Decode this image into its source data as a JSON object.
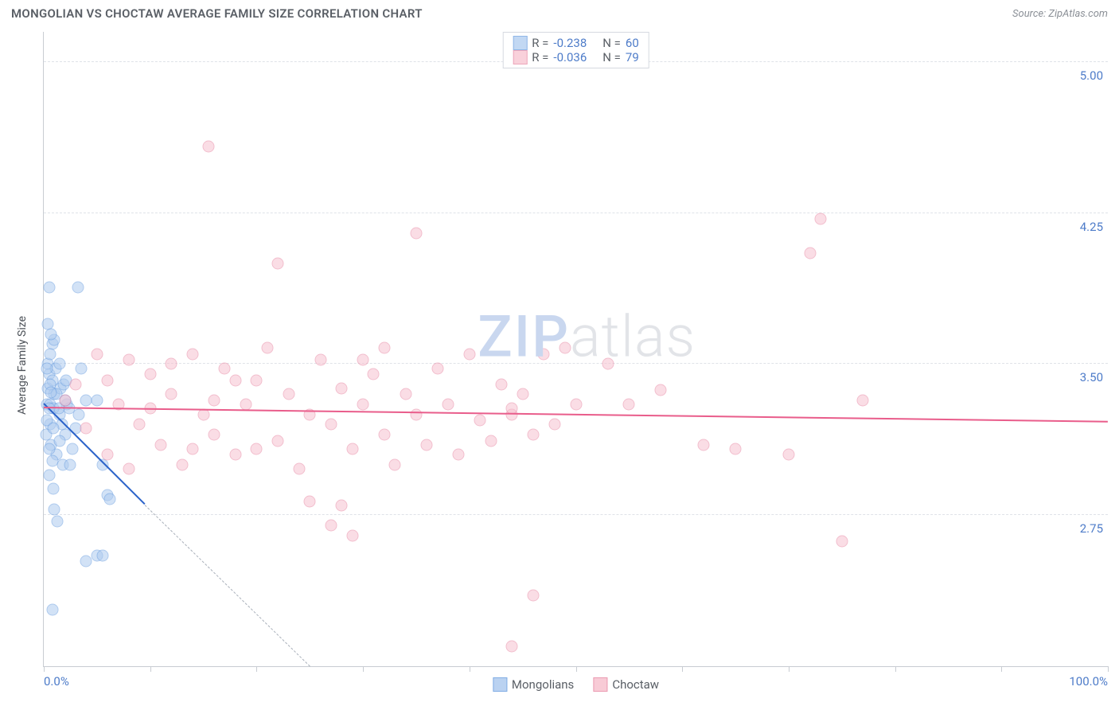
{
  "title": "MONGOLIAN VS CHOCTAW AVERAGE FAMILY SIZE CORRELATION CHART",
  "source": "Source: ZipAtlas.com",
  "ylabel": "Average Family Size",
  "watermark": {
    "a": "ZIP",
    "b": "atlas"
  },
  "chart": {
    "type": "scatter",
    "xlim": [
      0,
      100
    ],
    "ylim": [
      2.0,
      5.15
    ],
    "yticks": [
      2.75,
      3.5,
      4.25,
      5.0
    ],
    "ytick_labels": [
      "2.75",
      "3.50",
      "4.25",
      "5.00"
    ],
    "xticks_minor": [
      0,
      10,
      20,
      30,
      40,
      50,
      60,
      70,
      80,
      90,
      100
    ],
    "xlabel_min": "0.0%",
    "xlabel_max": "100.0%",
    "grid_color": "#dfe2e8",
    "axis_color": "#c8ccd2",
    "tick_label_color": "#4e7cc9",
    "background": "#ffffff",
    "series": [
      {
        "name": "Mongolians",
        "fill": "#aecbef",
        "stroke": "#6c9fe0",
        "fill_opacity": 0.55,
        "line_color": "#2a62c9",
        "r": -0.238,
        "n": 60,
        "reg": {
          "x1": 0,
          "y1": 3.3,
          "x2": 9.5,
          "y2": 2.8,
          "dash_to_x": 25,
          "dash_to_y": 2.0
        },
        "points": [
          [
            0.3,
            3.3
          ],
          [
            0.5,
            3.45
          ],
          [
            0.8,
            3.6
          ],
          [
            0.4,
            3.5
          ],
          [
            1.0,
            3.35
          ],
          [
            1.5,
            3.25
          ],
          [
            0.6,
            3.2
          ],
          [
            0.7,
            3.1
          ],
          [
            1.2,
            3.05
          ],
          [
            1.8,
            3.0
          ],
          [
            2.0,
            3.15
          ],
          [
            2.2,
            3.3
          ],
          [
            0.5,
            2.95
          ],
          [
            0.9,
            2.88
          ],
          [
            1.0,
            2.78
          ],
          [
            1.3,
            2.72
          ],
          [
            0.4,
            3.7
          ],
          [
            0.6,
            3.55
          ],
          [
            0.4,
            3.38
          ],
          [
            0.8,
            3.42
          ],
          [
            1.1,
            3.48
          ],
          [
            1.6,
            3.38
          ],
          [
            2.5,
            3.0
          ],
          [
            2.7,
            3.08
          ],
          [
            3.0,
            3.18
          ],
          [
            3.3,
            3.25
          ],
          [
            3.5,
            3.48
          ],
          [
            4.0,
            3.32
          ],
          [
            3.2,
            3.88
          ],
          [
            0.5,
            3.88
          ],
          [
            5.0,
            3.32
          ],
          [
            5.5,
            3.0
          ],
          [
            6.0,
            2.85
          ],
          [
            6.2,
            2.83
          ],
          [
            4.0,
            2.52
          ],
          [
            5.0,
            2.55
          ],
          [
            5.5,
            2.55
          ],
          [
            0.8,
            2.28
          ],
          [
            0.8,
            3.02
          ],
          [
            1.5,
            3.5
          ],
          [
            1.0,
            3.62
          ],
          [
            0.7,
            3.65
          ],
          [
            0.3,
            3.48
          ],
          [
            0.6,
            3.3
          ],
          [
            0.9,
            3.28
          ],
          [
            1.4,
            3.28
          ],
          [
            1.7,
            3.2
          ],
          [
            1.9,
            3.4
          ],
          [
            2.1,
            3.42
          ],
          [
            2.4,
            3.28
          ],
          [
            0.2,
            3.15
          ],
          [
            0.5,
            3.08
          ],
          [
            0.6,
            3.4
          ],
          [
            0.3,
            3.22
          ],
          [
            0.9,
            3.18
          ],
          [
            1.2,
            3.35
          ],
          [
            1.5,
            3.12
          ],
          [
            2.0,
            3.32
          ],
          [
            0.5,
            3.28
          ],
          [
            0.7,
            3.36
          ]
        ]
      },
      {
        "name": "Choctaw",
        "fill": "#f7c2d0",
        "stroke": "#e88aa5",
        "fill_opacity": 0.55,
        "line_color": "#e95d8b",
        "r": -0.036,
        "n": 79,
        "reg": {
          "x1": 0,
          "y1": 3.28,
          "x2": 100,
          "y2": 3.21
        },
        "points": [
          [
            3,
            3.4
          ],
          [
            5,
            3.55
          ],
          [
            6,
            3.05
          ],
          [
            7,
            3.3
          ],
          [
            8,
            3.52
          ],
          [
            9,
            3.2
          ],
          [
            10,
            3.45
          ],
          [
            11,
            3.1
          ],
          [
            12,
            3.35
          ],
          [
            13,
            3.0
          ],
          [
            14,
            3.55
          ],
          [
            15,
            3.25
          ],
          [
            15.5,
            4.58
          ],
          [
            16,
            3.15
          ],
          [
            17,
            3.48
          ],
          [
            18,
            3.05
          ],
          [
            19,
            3.3
          ],
          [
            20,
            3.42
          ],
          [
            21,
            3.58
          ],
          [
            22,
            3.12
          ],
          [
            22,
            4.0
          ],
          [
            23,
            3.35
          ],
          [
            24,
            2.98
          ],
          [
            25,
            3.25
          ],
          [
            25,
            2.82
          ],
          [
            26,
            3.52
          ],
          [
            27,
            3.2
          ],
          [
            27,
            2.7
          ],
          [
            28,
            3.38
          ],
          [
            28,
            2.8
          ],
          [
            29,
            3.08
          ],
          [
            29,
            2.65
          ],
          [
            30,
            3.3
          ],
          [
            30,
            3.52
          ],
          [
            31,
            3.45
          ],
          [
            32,
            3.15
          ],
          [
            32,
            3.58
          ],
          [
            33,
            3.0
          ],
          [
            34,
            3.35
          ],
          [
            35,
            3.25
          ],
          [
            35,
            4.15
          ],
          [
            36,
            3.1
          ],
          [
            37,
            3.48
          ],
          [
            38,
            3.3
          ],
          [
            39,
            3.05
          ],
          [
            40,
            3.55
          ],
          [
            41,
            3.22
          ],
          [
            42,
            3.12
          ],
          [
            43,
            3.4
          ],
          [
            44,
            3.25
          ],
          [
            44,
            3.28
          ],
          [
            44,
            2.1
          ],
          [
            45,
            3.35
          ],
          [
            46,
            3.15
          ],
          [
            46,
            2.35
          ],
          [
            47,
            3.55
          ],
          [
            48,
            3.2
          ],
          [
            49,
            3.58
          ],
          [
            50,
            3.3
          ],
          [
            53,
            3.5
          ],
          [
            55,
            3.3
          ],
          [
            58,
            3.37
          ],
          [
            62,
            3.1
          ],
          [
            65,
            3.08
          ],
          [
            70,
            3.05
          ],
          [
            72,
            4.05
          ],
          [
            73,
            4.22
          ],
          [
            75,
            2.62
          ],
          [
            77,
            3.32
          ],
          [
            2,
            3.32
          ],
          [
            4,
            3.18
          ],
          [
            6,
            3.42
          ],
          [
            8,
            2.98
          ],
          [
            10,
            3.28
          ],
          [
            12,
            3.5
          ],
          [
            14,
            3.08
          ],
          [
            16,
            3.32
          ],
          [
            18,
            3.42
          ],
          [
            20,
            3.08
          ]
        ]
      }
    ]
  },
  "top_legend": {
    "r_label": "R =",
    "n_label": "N ="
  },
  "bottom_legend": {
    "items": [
      "Mongolians",
      "Choctaw"
    ]
  }
}
